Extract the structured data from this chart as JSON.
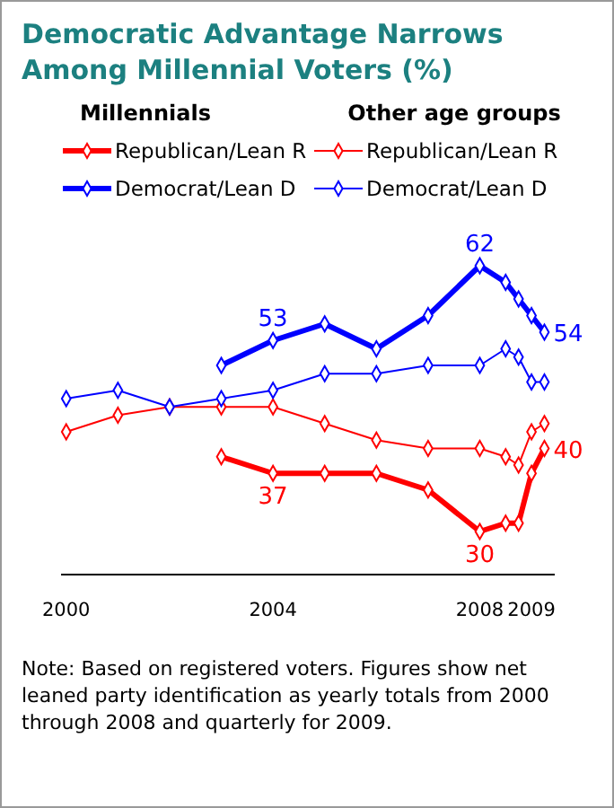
{
  "chart_data": {
    "type": "line",
    "title": "Democratic Advantage Narrows Among Millennial Voters (%)",
    "x": [
      2000,
      2001,
      2002,
      2003,
      2004,
      2005,
      2006,
      2007,
      2008,
      2008.5,
      2008.75,
      2009,
      2009.25
    ],
    "series": [
      {
        "name": "Republican/Lean R",
        "color": "#ff0000",
        "values": [
          null,
          null,
          null,
          39,
          37,
          37,
          37,
          35,
          30,
          31,
          31,
          37,
          40
        ],
        "value_labels": [
          null,
          null,
          null,
          null,
          "37",
          null,
          null,
          null,
          "30",
          null,
          null,
          null,
          "40"
        ]
      },
      {
        "name": "Democrat/Lean D",
        "color": "#0000ff",
        "values": [
          null,
          null,
          null,
          50,
          53,
          55,
          52,
          56,
          62,
          60,
          58,
          56,
          54
        ],
        "value_labels": [
          null,
          null,
          null,
          null,
          "53",
          null,
          null,
          null,
          "62",
          null,
          null,
          null,
          "54"
        ]
      },
      {
        "name": "Republican/Lean R",
        "color": "#ff0000",
        "values": [
          42,
          44,
          45,
          45,
          45,
          43,
          41,
          40,
          40,
          39,
          38,
          42,
          43
        ]
      },
      {
        "name": "Democrat/Lean D",
        "color": "#0000ff",
        "values": [
          46,
          47,
          45,
          46,
          47,
          49,
          49,
          50,
          50,
          52,
          51,
          48,
          48
        ]
      }
    ],
    "xlim": [
      1999.9,
      2009.45
    ],
    "xticks": [
      2000,
      2004,
      2008,
      2009
    ],
    "tick_labels": "x",
    "grid": false,
    "legend": "top",
    "marker": "diamond",
    "line_style": "solid",
    "annotations": [
      "Millennials",
      "Other age groups",
      "Note: Based on registered voters. Figures show net leaned party identification as yearly totals from 2000 through 2008 and quarterly for 2009."
    ]
  }
}
